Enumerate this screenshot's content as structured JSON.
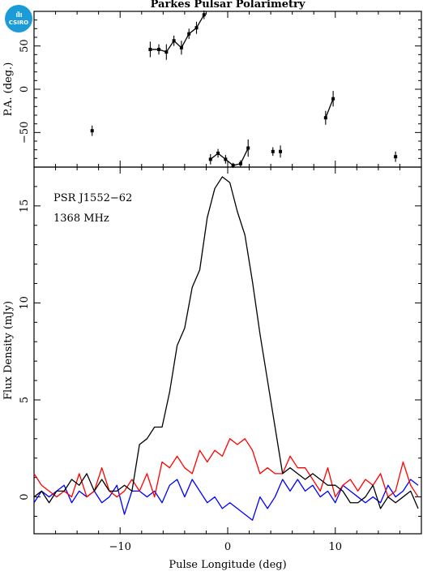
{
  "logo": {
    "text": "CSIRO",
    "color": "#1b9bd8"
  },
  "chart_data": [
    {
      "panel": "top",
      "type": "scatter",
      "title": "Parkes Pulsar Polarimetry",
      "ylabel": "P.A. (deg.)",
      "xlim": [
        -18,
        18
      ],
      "ylim": [
        -90,
        90
      ],
      "yticks": [
        -50,
        0,
        50
      ],
      "segments": [
        [
          [
            -7.2,
            46
          ],
          [
            -6.4,
            46
          ],
          [
            -5.7,
            43
          ],
          [
            -5.0,
            56
          ],
          [
            -4.3,
            48
          ],
          [
            -3.6,
            64
          ],
          [
            -2.9,
            71
          ],
          [
            -2.2,
            86
          ]
        ],
        [
          [
            -1.6,
            -81
          ],
          [
            -0.9,
            -74
          ],
          [
            -0.2,
            -81
          ],
          [
            0.5,
            -88
          ],
          [
            1.2,
            -86
          ],
          [
            1.9,
            -68
          ]
        ],
        [
          [
            9.1,
            -33
          ],
          [
            9.8,
            -11
          ]
        ]
      ],
      "points": [
        {
          "x": -12.6,
          "y": -48,
          "err": 6
        },
        {
          "x": -7.2,
          "y": 46,
          "err": 9
        },
        {
          "x": -6.4,
          "y": 46,
          "err": 6
        },
        {
          "x": -5.7,
          "y": 43,
          "err": 9
        },
        {
          "x": -5.0,
          "y": 56,
          "err": 6
        },
        {
          "x": -4.3,
          "y": 48,
          "err": 8
        },
        {
          "x": -3.6,
          "y": 64,
          "err": 6
        },
        {
          "x": -2.9,
          "y": 71,
          "err": 7
        },
        {
          "x": -2.2,
          "y": 86,
          "err": 5
        },
        {
          "x": -1.6,
          "y": -81,
          "err": 6
        },
        {
          "x": -0.9,
          "y": -74,
          "err": 5
        },
        {
          "x": -0.2,
          "y": -81,
          "err": 5
        },
        {
          "x": 0.5,
          "y": -88,
          "err": 3
        },
        {
          "x": 1.2,
          "y": -86,
          "err": 4
        },
        {
          "x": 1.9,
          "y": -68,
          "err": 10
        },
        {
          "x": 4.2,
          "y": -72,
          "err": 5
        },
        {
          "x": 4.9,
          "y": -72,
          "err": 7
        },
        {
          "x": 9.1,
          "y": -33,
          "err": 8
        },
        {
          "x": 9.8,
          "y": -11,
          "err": 9
        },
        {
          "x": 15.6,
          "y": -78,
          "err": 6
        }
      ]
    },
    {
      "panel": "bottom",
      "type": "line",
      "xlabel": "Pulse Longitude (deg)",
      "ylabel": "Flux Density (mJy)",
      "annotations": [
        "PSR J1552−62",
        "1368 MHz"
      ],
      "xlim": [
        -18,
        18
      ],
      "ylim": [
        -1.9,
        17.0
      ],
      "xticks": [
        -10,
        0,
        10
      ],
      "yticks": [
        0,
        5,
        10,
        15
      ],
      "x": [
        -18.0,
        -17.3,
        -16.6,
        -15.9,
        -15.2,
        -14.5,
        -13.8,
        -13.1,
        -12.4,
        -11.7,
        -11.0,
        -10.3,
        -9.6,
        -8.9,
        -8.2,
        -7.5,
        -6.8,
        -6.1,
        -5.4,
        -4.7,
        -4.0,
        -3.3,
        -2.6,
        -1.9,
        -1.2,
        -0.5,
        0.2,
        0.9,
        1.6,
        2.3,
        3.0,
        3.7,
        4.4,
        5.1,
        5.8,
        6.5,
        7.2,
        7.9,
        8.6,
        9.3,
        10.0,
        10.7,
        11.4,
        12.1,
        12.8,
        13.5,
        14.2,
        14.9,
        15.6,
        16.3,
        17.0,
        17.7
      ],
      "series": [
        {
          "color": "#000000",
          "values": [
            0.0,
            0.3,
            -0.3,
            0.3,
            0.3,
            0.9,
            0.6,
            1.2,
            0.3,
            0.9,
            0.3,
            0.3,
            0.6,
            0.3,
            2.7,
            3.0,
            3.6,
            3.6,
            5.4,
            7.8,
            8.7,
            10.8,
            11.7,
            14.4,
            15.9,
            16.5,
            16.2,
            14.7,
            13.5,
            11.1,
            8.4,
            6.0,
            3.6,
            1.2,
            1.5,
            1.2,
            0.9,
            1.2,
            0.9,
            0.6,
            0.6,
            0.3,
            -0.3,
            -0.3,
            0.0,
            0.6,
            -0.6,
            0.0,
            -0.3,
            0.0,
            0.3,
            -0.6
          ]
        },
        {
          "color": "#ff0000",
          "values": [
            1.2,
            0.6,
            0.3,
            0.0,
            0.3,
            0.0,
            1.2,
            0.0,
            0.3,
            1.5,
            0.3,
            0.0,
            0.3,
            0.9,
            0.3,
            1.2,
            0.0,
            1.8,
            1.5,
            2.1,
            1.5,
            1.2,
            2.4,
            1.8,
            2.4,
            2.1,
            3.0,
            2.7,
            3.0,
            2.4,
            1.2,
            1.5,
            1.2,
            1.2,
            2.1,
            1.5,
            1.5,
            0.9,
            0.3,
            1.5,
            0.0,
            0.6,
            0.9,
            0.3,
            0.9,
            0.6,
            1.2,
            0.0,
            0.3,
            1.8,
            0.6,
            0.0
          ]
        },
        {
          "color": "#0000ff",
          "values": [
            -0.3,
            0.3,
            0.0,
            0.3,
            0.6,
            -0.3,
            0.3,
            0.0,
            0.3,
            -0.3,
            0.0,
            0.6,
            -0.9,
            0.3,
            0.3,
            0.0,
            0.3,
            -0.3,
            0.6,
            0.9,
            0.0,
            0.9,
            0.3,
            -0.3,
            0.0,
            -0.6,
            -0.3,
            -0.6,
            -0.9,
            -1.2,
            0.0,
            -0.6,
            0.0,
            0.9,
            0.3,
            0.9,
            0.3,
            0.6,
            0.0,
            0.3,
            -0.3,
            0.6,
            0.3,
            0.0,
            -0.3,
            0.0,
            -0.3,
            0.6,
            0.0,
            0.3,
            0.9,
            0.6
          ]
        }
      ]
    }
  ]
}
